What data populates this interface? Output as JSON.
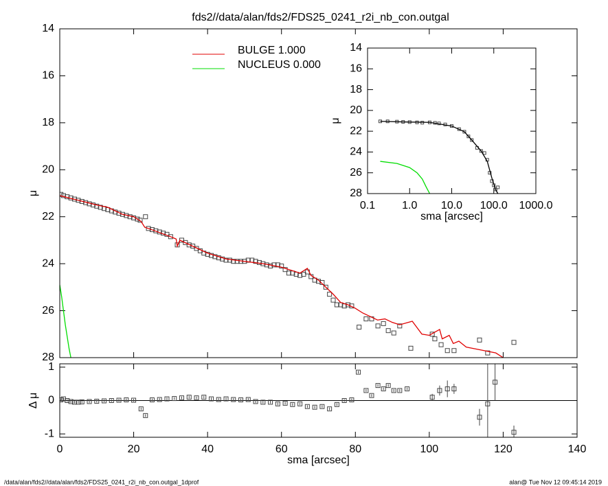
{
  "chart_data": [
    {
      "type": "line",
      "title": "fds2//data/alan/fds2/FDS25_0241_r2i_nb_con.outgal",
      "ylabel": "μ",
      "xlim": [
        0,
        140
      ],
      "xticks": [
        0,
        20,
        40,
        60,
        80,
        100,
        120,
        140
      ],
      "xtick_labels": false,
      "ylim": [
        28,
        14
      ],
      "yticks": [
        14,
        16,
        18,
        20,
        22,
        24,
        26,
        28
      ],
      "series": [
        {
          "color": "#444444",
          "marker": "square",
          "x": [
            0.3,
            1,
            2,
            3,
            4,
            5,
            6,
            7,
            8,
            9,
            10,
            11,
            12,
            13,
            14,
            15,
            16,
            17,
            18,
            19,
            20,
            21,
            21.75,
            23.2,
            24,
            25,
            26,
            27,
            28,
            29,
            30,
            31.8,
            33,
            34,
            35,
            36,
            37,
            38,
            39,
            40,
            41,
            42,
            43,
            44,
            45,
            46,
            47,
            48,
            49,
            50,
            51,
            52,
            53,
            54,
            55,
            56,
            57,
            58,
            59,
            60,
            61,
            62,
            63,
            64,
            65,
            66,
            67,
            68,
            69,
            70,
            71,
            72,
            73,
            74,
            75,
            76,
            77,
            78,
            79,
            81,
            82.9,
            84.4,
            86.1,
            87.6,
            88.9,
            90.4,
            92,
            95,
            100.8,
            101.5,
            103.2,
            104.9,
            106.7,
            113.6,
            115.8,
            122.9
          ],
          "values": [
            21.05,
            21.1,
            21.15,
            21.2,
            21.25,
            21.3,
            21.35,
            21.4,
            21.45,
            21.5,
            21.55,
            21.6,
            21.65,
            21.7,
            21.75,
            21.8,
            21.85,
            21.9,
            21.95,
            22.0,
            22.05,
            22.1,
            22.15,
            22.0,
            22.5,
            22.55,
            22.6,
            22.65,
            22.7,
            22.75,
            22.85,
            23.2,
            23.0,
            23.1,
            23.2,
            23.25,
            23.35,
            23.45,
            23.55,
            23.6,
            23.65,
            23.7,
            23.75,
            23.8,
            23.85,
            23.85,
            23.9,
            23.9,
            23.9,
            23.9,
            23.85,
            23.85,
            23.9,
            23.95,
            24.0,
            24.05,
            24.1,
            24.05,
            24.05,
            24.1,
            24.25,
            24.4,
            24.4,
            24.45,
            24.5,
            24.45,
            24.35,
            24.55,
            24.7,
            24.75,
            24.8,
            25.0,
            25.3,
            25.55,
            25.75,
            25.75,
            25.8,
            25.75,
            25.8,
            26.7,
            26.35,
            26.35,
            26.65,
            26.55,
            26.85,
            26.95,
            26.65,
            27.6,
            27.0,
            27.2,
            27.45,
            27.7,
            27.7,
            27.25,
            27.8,
            27.35
          ]
        },
        {
          "name": "BULGE  1.000",
          "color": "#e00000",
          "x": [
            0,
            5,
            10,
            13,
            17,
            20,
            22,
            23,
            24,
            30,
            31.5,
            31.8,
            32.5,
            40,
            45,
            50,
            55,
            60,
            65,
            67,
            68,
            70,
            72,
            74,
            76,
            78,
            80,
            82,
            86,
            88,
            90,
            92,
            95.4,
            98,
            100,
            102.8,
            103.5,
            105.4,
            106.5,
            108,
            110,
            118,
            120
          ],
          "values": [
            21.1,
            21.3,
            21.5,
            21.6,
            21.9,
            22.0,
            22.2,
            22.45,
            22.5,
            22.85,
            22.95,
            23.25,
            23.0,
            23.55,
            23.8,
            23.9,
            24.0,
            24.15,
            24.4,
            24.2,
            24.5,
            24.7,
            25.0,
            25.3,
            25.65,
            25.75,
            25.9,
            26.1,
            26.4,
            26.35,
            26.5,
            26.6,
            26.45,
            27.0,
            27.05,
            26.8,
            27.2,
            27.05,
            27.4,
            27.3,
            27.55,
            27.8,
            28.0
          ]
        },
        {
          "name": "NUCLEUS  0.000",
          "color": "#00dd00",
          "x": [
            0,
            0.5,
            1,
            1.5,
            2,
            2.5,
            3
          ],
          "values": [
            24.9,
            25.4,
            26.0,
            26.6,
            27.1,
            27.6,
            28.0
          ]
        }
      ]
    },
    {
      "type": "errorbar",
      "xlabel": "sma [arcsec]",
      "ylabel": "Δ μ",
      "xlim": [
        0,
        140
      ],
      "xticks": [
        0,
        20,
        40,
        60,
        80,
        100,
        120,
        140
      ],
      "ylim": [
        -1.1,
        1.1
      ],
      "yticks": [
        -1,
        0,
        1
      ],
      "hline": 0,
      "series": [
        {
          "color": "#444444",
          "marker": "square",
          "x": [
            0.3,
            1,
            2,
            3,
            4,
            5,
            6,
            8,
            10,
            12,
            14,
            16,
            18,
            20,
            22,
            23.2,
            25,
            27,
            29,
            31,
            33,
            35,
            37,
            39,
            41,
            43,
            45,
            47,
            49,
            51,
            53,
            55,
            57,
            59,
            61,
            63,
            65,
            67,
            69,
            71,
            73,
            75,
            77,
            79,
            80.8,
            82.9,
            84.4,
            86.1,
            87.6,
            88.9,
            90.4,
            92,
            94,
            100.8,
            102.8,
            104.9,
            106.7,
            113.6,
            115.8,
            117.8,
            122.9
          ],
          "values": [
            0.02,
            0.05,
            0.0,
            -0.03,
            -0.05,
            -0.05,
            -0.04,
            -0.03,
            -0.02,
            -0.01,
            0.0,
            0.01,
            0.02,
            0.01,
            -0.25,
            -0.45,
            0.02,
            0.03,
            0.05,
            0.06,
            0.08,
            0.1,
            0.08,
            0.1,
            0.05,
            0.03,
            0.05,
            0.03,
            0.02,
            0.03,
            -0.03,
            -0.05,
            -0.05,
            -0.1,
            -0.08,
            -0.12,
            -0.1,
            -0.18,
            -0.2,
            -0.18,
            -0.25,
            -0.12,
            0.0,
            0.02,
            0.85,
            0.3,
            0.15,
            0.45,
            0.35,
            0.45,
            0.3,
            0.3,
            0.35,
            0.1,
            0.3,
            0.35,
            0.35,
            -0.5,
            -0.1,
            0.55,
            -0.95
          ],
          "errors": [
            0.04,
            0.04,
            0.04,
            0.04,
            0.04,
            0.04,
            0.04,
            0.04,
            0.04,
            0.04,
            0.04,
            0.04,
            0.04,
            0.04,
            0.04,
            0.04,
            0.04,
            0.04,
            0.04,
            0.04,
            0.04,
            0.04,
            0.04,
            0.04,
            0.04,
            0.04,
            0.04,
            0.04,
            0.04,
            0.04,
            0.04,
            0.04,
            0.04,
            0.04,
            0.04,
            0.04,
            0.04,
            0.04,
            0.04,
            0.04,
            0.04,
            0.04,
            0.04,
            0.04,
            0.04,
            0.04,
            0.04,
            0.04,
            0.04,
            0.04,
            0.04,
            0.04,
            0.04,
            0.1,
            0.15,
            0.25,
            0.15,
            0.25,
            1.2,
            0.55,
            0.2
          ]
        }
      ]
    },
    {
      "type": "line",
      "xlabel": "sma [arcsec]",
      "ylabel": "μ",
      "xlog": true,
      "xlim": [
        0.1,
        1000
      ],
      "xticks": [
        0.1,
        {
          "value": 1,
          "label": "1.0"
        },
        {
          "value": 10,
          "label": "10.0"
        },
        {
          "value": 100,
          "label": "100.0"
        },
        {
          "value": 1000,
          "label": "1000.0"
        }
      ],
      "ylim": [
        28,
        14
      ],
      "yticks": [
        14,
        16,
        18,
        20,
        22,
        24,
        26,
        28
      ],
      "series": [
        {
          "color": "#444444",
          "marker": "square",
          "x": [
            0.2,
            0.3,
            0.5,
            0.7,
            1,
            1.5,
            2,
            3,
            4,
            5,
            7,
            10,
            15,
            20,
            25,
            30,
            40,
            50,
            60,
            70,
            80,
            90,
            100,
            110,
            125
          ],
          "values": [
            21.05,
            21.05,
            21.08,
            21.1,
            21.12,
            21.15,
            21.18,
            21.15,
            21.2,
            21.25,
            21.35,
            21.5,
            21.8,
            22.05,
            22.5,
            22.85,
            23.6,
            23.9,
            24.1,
            24.75,
            26.0,
            26.8,
            27.2,
            27.6,
            27.4
          ]
        },
        {
          "color": "#000000",
          "x": [
            0.2,
            1,
            3,
            10,
            20,
            30,
            50,
            70,
            90,
            110,
            125
          ],
          "values": [
            21.05,
            21.12,
            21.15,
            21.5,
            22.05,
            22.85,
            23.9,
            24.9,
            26.5,
            27.6,
            28.0
          ]
        },
        {
          "color": "#00dd00",
          "x": [
            0.2,
            0.5,
            1,
            1.5,
            2,
            2.5,
            3
          ],
          "values": [
            24.9,
            25.1,
            25.5,
            26.0,
            26.6,
            27.4,
            28.0
          ]
        }
      ]
    }
  ],
  "footer": {
    "left": "/data/alan/fds2//data/alan/fds2/FDS25_0241_r2i_nb_con.outgal_1dprof",
    "right": "alan@  Tue Nov 12 09:45:14 2019"
  }
}
